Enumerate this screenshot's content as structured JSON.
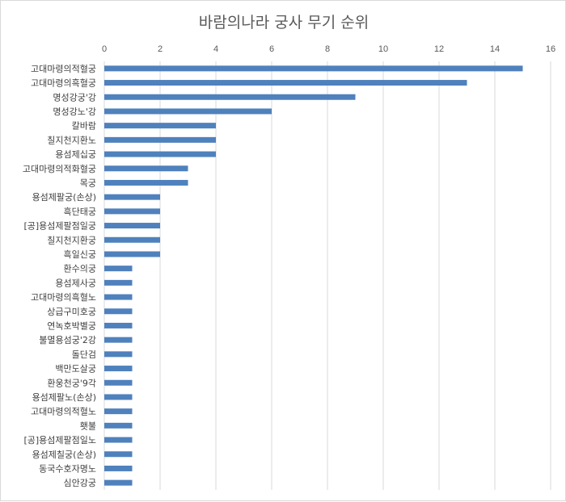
{
  "chart_data": {
    "type": "bar",
    "orientation": "horizontal",
    "title": "바람의나라 궁사 무기 순위",
    "xlabel": "",
    "ylabel": "",
    "xlim": [
      0,
      16
    ],
    "xticks": [
      0,
      2,
      4,
      6,
      8,
      10,
      12,
      14,
      16
    ],
    "x_axis_position": "top",
    "grid": "vertical",
    "bar_color": "#4f81bd",
    "categories": [
      "고대마령의적혈궁",
      "고대마령의흑혈궁",
      "명성강궁'강",
      "명성강노'강",
      "칼바람",
      "칠지천지환노",
      "용섬제십궁",
      "고대마령의적화혈궁",
      "목궁",
      "용섬제팔궁(손상)",
      "흑단태궁",
      "[공]용섬제팔점일궁",
      "칠지천지환궁",
      "흑일신궁",
      "환수의궁",
      "용섬제사궁",
      "고대마령의흑혈노",
      "상급구미호궁",
      "연녹호박별궁",
      "불멸용섬궁'2강",
      "돌단검",
      "백만도살궁",
      "환웅천궁'9각",
      "용섬제팔노(손상)",
      "고대마령의적혈노",
      "횃불",
      "[공]용섬제팔점일노",
      "용섬제칠궁(손상)",
      "동국수호자명노",
      "심안강궁"
    ],
    "values": [
      15,
      13,
      9,
      6,
      4,
      4,
      4,
      3,
      3,
      2,
      2,
      2,
      2,
      2,
      1,
      1,
      1,
      1,
      1,
      1,
      1,
      1,
      1,
      1,
      1,
      1,
      1,
      1,
      1,
      1
    ]
  }
}
